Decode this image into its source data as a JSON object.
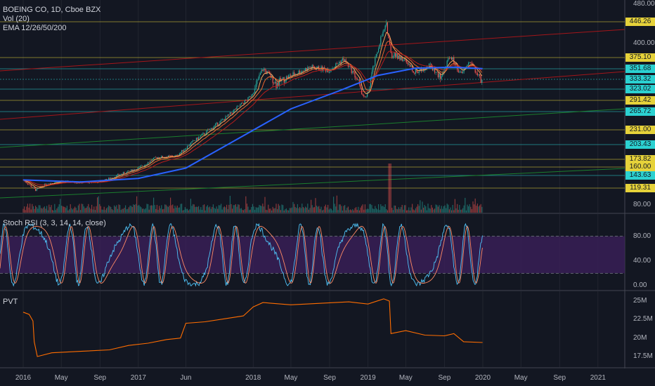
{
  "colors": {
    "background": "#131722",
    "grid": "#2a2e39",
    "candle_up": "#26a69a",
    "candle_down": "#ef5350",
    "ema12": "#f7a35c",
    "ema26": "#e9642e",
    "ema50": "#b71c1c",
    "ema200": "#2962ff",
    "stoch_k": "#4fc3f7",
    "stoch_d": "#ff8a65",
    "stoch_band": "#3b1f5a",
    "pvt": "#ff6d00",
    "hline_yellow": "#e6d23a",
    "hline_cyan": "#2bd1d1",
    "trend_red": "#a4161a",
    "trend_green": "#1b7f2e"
  },
  "legend": {
    "title": "BOEING CO, 1D, Cboe BZX",
    "vol": "Vol (20)",
    "ema": "EMA 12/26/50/200"
  },
  "stoch_title": "Stoch RSI (3, 3, 14, 14, close)",
  "pvt_title": "PVT",
  "chart_data": [
    {
      "type": "candlestick",
      "title": "BOEING CO, 1D, Cboe BZX",
      "x_ticks": [
        "2016",
        "May",
        "Sep",
        "2017",
        "Jun",
        "2018",
        "May",
        "Sep",
        "2019",
        "May",
        "Sep",
        "2020",
        "May",
        "Sep",
        "2021"
      ],
      "y_ticks": [
        "480.00",
        "400.00",
        "80.00"
      ],
      "ylim": [
        80,
        480
      ],
      "price_path": [
        [
          "2016-01-01",
          135
        ],
        [
          "2016-02-10",
          115
        ],
        [
          "2016-03-15",
          128
        ],
        [
          "2016-05-01",
          132
        ],
        [
          "2016-07-01",
          130
        ],
        [
          "2016-09-01",
          131
        ],
        [
          "2016-11-01",
          145
        ],
        [
          "2017-01-01",
          158
        ],
        [
          "2017-03-01",
          178
        ],
        [
          "2017-05-01",
          180
        ],
        [
          "2017-06-15",
          205
        ],
        [
          "2017-08-01",
          225
        ],
        [
          "2017-10-15",
          258
        ],
        [
          "2017-12-15",
          295
        ],
        [
          "2018-02-01",
          352
        ],
        [
          "2018-03-15",
          328
        ],
        [
          "2018-05-01",
          340
        ],
        [
          "2018-07-01",
          355
        ],
        [
          "2018-09-01",
          350
        ],
        [
          "2018-10-15",
          372
        ],
        [
          "2018-12-01",
          330
        ],
        [
          "2018-12-24",
          295
        ],
        [
          "2019-01-15",
          348
        ],
        [
          "2019-02-10",
          410
        ],
        [
          "2019-03-01",
          440
        ],
        [
          "2019-03-15",
          380
        ],
        [
          "2019-04-15",
          375
        ],
        [
          "2019-06-01",
          345
        ],
        [
          "2019-07-15",
          360
        ],
        [
          "2019-08-20",
          335
        ],
        [
          "2019-09-20",
          378
        ],
        [
          "2019-10-25",
          340
        ],
        [
          "2019-11-20",
          368
        ],
        [
          "2019-12-31",
          326
        ]
      ],
      "ema200_path": [
        [
          "2016-01-01",
          135
        ],
        [
          "2016-07-01",
          131
        ],
        [
          "2017-01-01",
          138
        ],
        [
          "2017-06-01",
          158
        ],
        [
          "2017-12-01",
          220
        ],
        [
          "2018-05-01",
          272
        ],
        [
          "2018-10-01",
          318
        ],
        [
          "2019-02-01",
          340
        ],
        [
          "2019-06-01",
          353
        ],
        [
          "2019-10-01",
          355
        ],
        [
          "2019-12-31",
          352
        ]
      ],
      "horizontal_levels": [
        {
          "value": 446.26,
          "label": "446.26",
          "color": "#e6d23a"
        },
        {
          "value": 375.1,
          "label": "375.10",
          "color": "#e6d23a"
        },
        {
          "value": 351.68,
          "label": "351.68",
          "color": "#2bd1d1"
        },
        {
          "value": 333.32,
          "label": "333.32",
          "color": "#2bd1d1"
        },
        {
          "value": 323.02,
          "label": "323.02",
          "color": "#2bd1d1"
        },
        {
          "value": 291.42,
          "label": "291.42",
          "color": "#e6d23a"
        },
        {
          "value": 265.72,
          "label": "265.72",
          "color": "#2bd1d1"
        },
        {
          "value": 231.0,
          "label": "231.00",
          "color": "#e6d23a"
        },
        {
          "value": 203.43,
          "label": "203.43",
          "color": "#2bd1d1"
        },
        {
          "value": 173.82,
          "label": "173.82",
          "color": "#e6d23a"
        },
        {
          "value": 160.0,
          "label": "160.00",
          "color": "#e6d23a"
        },
        {
          "value": 143.63,
          "label": "143.63",
          "color": "#2bd1d1"
        },
        {
          "value": 119.31,
          "label": "119.31",
          "color": "#e6d23a"
        }
      ]
    },
    {
      "type": "line",
      "title": "Stoch RSI (3, 3, 14, 14, close)",
      "y_ticks": [
        "80.00",
        "40.00",
        "0.00"
      ],
      "ylim": [
        0,
        100
      ],
      "band": [
        20,
        80
      ]
    },
    {
      "type": "line",
      "title": "PVT",
      "y_ticks": [
        "25M",
        "22.5M",
        "20M",
        "17.5M"
      ],
      "ylim": [
        17,
        25.5
      ],
      "series": [
        {
          "values": [
            [
              "2016-01-01",
              23.5
            ],
            [
              "2016-01-20",
              23.2
            ],
            [
              "2016-02-01",
              22.3
            ],
            [
              "2016-02-05",
              19.5
            ],
            [
              "2016-02-15",
              17.5
            ],
            [
              "2016-04-01",
              18.0
            ],
            [
              "2016-07-01",
              18.2
            ],
            [
              "2016-10-01",
              18.4
            ],
            [
              "2016-12-01",
              19.0
            ],
            [
              "2017-02-01",
              19.3
            ],
            [
              "2017-04-01",
              19.8
            ],
            [
              "2017-05-15",
              20.0
            ],
            [
              "2017-06-01",
              22.0
            ],
            [
              "2017-08-01",
              22.2
            ],
            [
              "2017-10-01",
              22.6
            ],
            [
              "2017-12-01",
              23.0
            ],
            [
              "2018-01-01",
              24.2
            ],
            [
              "2018-02-01",
              24.8
            ],
            [
              "2018-05-01",
              24.5
            ],
            [
              "2018-08-01",
              24.7
            ],
            [
              "2018-11-01",
              24.9
            ],
            [
              "2019-01-01",
              24.6
            ],
            [
              "2019-02-20",
              25.3
            ],
            [
              "2019-03-10",
              25.0
            ],
            [
              "2019-03-15",
              20.6
            ],
            [
              "2019-05-01",
              21.0
            ],
            [
              "2019-07-01",
              20.4
            ],
            [
              "2019-09-01",
              20.3
            ],
            [
              "2019-10-01",
              20.6
            ],
            [
              "2019-11-01",
              19.5
            ],
            [
              "2019-12-31",
              19.4
            ]
          ]
        }
      ]
    }
  ]
}
